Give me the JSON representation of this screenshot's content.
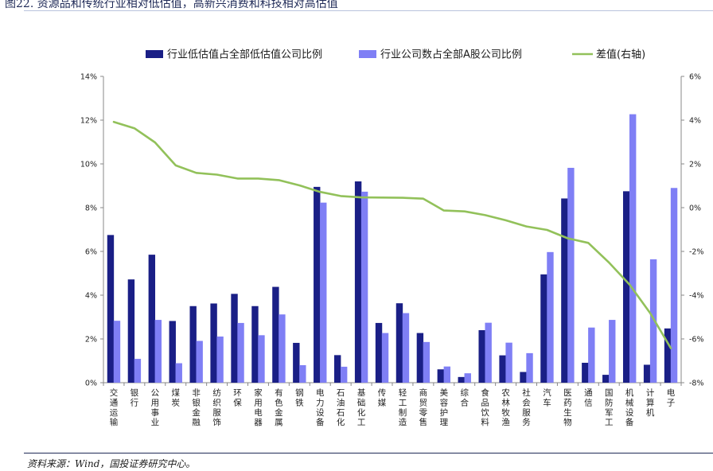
{
  "figure": {
    "title": "图22. 资源品和传统行业相对低估值，高新兴消费和科技相对高估值",
    "source": "资料来源：Wind，国投证券研究中心。"
  },
  "colors": {
    "bar_low": "#1a1f86",
    "bar_all": "#7f7ff5",
    "diff_line": "#92c15a",
    "title": "#1f2a57"
  },
  "chart_data": {
    "type": "bar",
    "categories": [
      "交通运输",
      "银行",
      "公用事业",
      "煤炭",
      "非银金融",
      "纺织服饰",
      "环保",
      "家用电器",
      "有色金属",
      "钢铁",
      "电力设备",
      "石油石化",
      "基础化工",
      "传媒",
      "轻工制造",
      "商贸零售",
      "美容护理",
      "综合",
      "食品饮料",
      "农林牧渔",
      "社会服务",
      "汽车",
      "医药生物",
      "通信",
      "国防军工",
      "机械设备",
      "计算机",
      "电子"
    ],
    "series": [
      {
        "name": "行业低估值占全部低估值公司比例",
        "axis": "left",
        "type": "bar",
        "values": [
          6.75,
          4.72,
          5.85,
          2.82,
          3.5,
          3.62,
          4.06,
          3.5,
          4.38,
          1.82,
          8.95,
          1.26,
          9.2,
          2.73,
          3.63,
          2.27,
          0.61,
          0.26,
          2.4,
          1.25,
          0.49,
          4.95,
          8.42,
          0.91,
          0.36,
          8.75,
          0.82,
          2.48
        ]
      },
      {
        "name": "行业公司数占全部A股公司比例",
        "axis": "left",
        "type": "bar",
        "values": [
          2.83,
          1.09,
          2.87,
          0.89,
          1.91,
          2.11,
          2.73,
          2.17,
          3.12,
          0.8,
          8.23,
          0.73,
          8.73,
          2.27,
          3.18,
          1.86,
          0.74,
          0.43,
          2.74,
          1.83,
          1.35,
          5.97,
          9.82,
          2.52,
          2.87,
          12.27,
          5.64,
          8.9
        ]
      },
      {
        "name": "差值(右轴)",
        "axis": "right",
        "type": "line",
        "values": [
          3.92,
          3.63,
          2.98,
          1.93,
          1.59,
          1.51,
          1.33,
          1.33,
          1.26,
          1.02,
          0.72,
          0.53,
          0.47,
          0.46,
          0.45,
          0.41,
          -0.13,
          -0.17,
          -0.34,
          -0.58,
          -0.86,
          -1.02,
          -1.4,
          -1.61,
          -2.51,
          -3.52,
          -4.82,
          -6.42
        ]
      }
    ],
    "left_axis": {
      "min": 0,
      "max": 14,
      "ticks": [
        "0%",
        "2%",
        "4%",
        "6%",
        "8%",
        "10%",
        "12%",
        "14%"
      ]
    },
    "right_axis": {
      "min": -8,
      "max": 6,
      "ticks": [
        "-8%",
        "-6%",
        "-4%",
        "-2%",
        "0%",
        "2%",
        "4%",
        "6%"
      ]
    },
    "grid": false,
    "legend_position": "top-center"
  }
}
